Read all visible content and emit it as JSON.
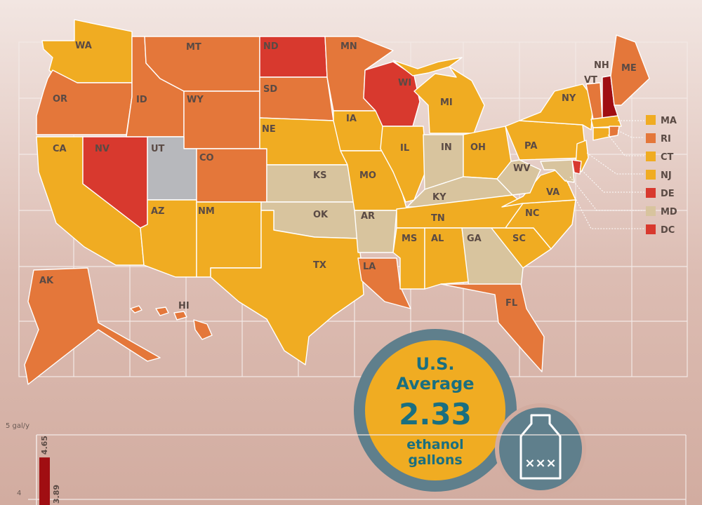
{
  "colors": {
    "low": "#d8c49e",
    "mid": "#f0ac22",
    "high": "#e4773a",
    "higher": "#d8392e",
    "highest": "#a00e12",
    "nodata": "#b7b8bc",
    "badge_ring": "#5f7f8c",
    "badge_fill": "#f0ac22",
    "badge_text": "#1a6f80"
  },
  "states": {
    "WA": "WA",
    "OR": "OR",
    "CA": "CA",
    "NV": "NV",
    "ID": "ID",
    "MT": "MT",
    "WY": "WY",
    "UT": "UT",
    "AZ": "AZ",
    "CO": "CO",
    "NM": "NM",
    "ND": "ND",
    "SD": "SD",
    "NE": "NE",
    "KS": "KS",
    "OK": "OK",
    "TX": "TX",
    "MN": "MN",
    "IA": "IA",
    "MO": "MO",
    "AR": "AR",
    "LA": "LA",
    "WI": "WI",
    "IL": "IL",
    "MI": "MI",
    "IN": "IN",
    "OH": "OH",
    "KY": "KY",
    "TN": "TN",
    "MS": "MS",
    "AL": "AL",
    "GA": "GA",
    "FL": "FL",
    "SC": "SC",
    "NC": "NC",
    "VA": "VA",
    "WV": "WV",
    "PA": "PA",
    "NY": "NY",
    "VT": "VT",
    "NH": "NH",
    "ME": "ME",
    "AK": "AK",
    "HI": "HI"
  },
  "legend": [
    {
      "label": "MA",
      "level": "mid"
    },
    {
      "label": "RI",
      "level": "high"
    },
    {
      "label": "CT",
      "level": "mid"
    },
    {
      "label": "NJ",
      "level": "mid"
    },
    {
      "label": "DE",
      "level": "higher"
    },
    {
      "label": "MD",
      "level": "low"
    },
    {
      "label": "DC",
      "level": "higher"
    }
  ],
  "badge": {
    "line1": "U.S.",
    "line2": "Average",
    "value": "2.33",
    "unit1": "ethanol",
    "unit2": "gallons",
    "bottle_marks": "×××",
    "icon": "bottle-icon"
  },
  "chart_data": {
    "type": "bar",
    "y_unit_label": "5 gal/y",
    "y_ticks": [
      "4"
    ],
    "values": [
      4.65,
      3.89
    ],
    "value_labels": [
      "4.65",
      "3.89"
    ],
    "ylim": [
      3.5,
      5
    ]
  }
}
